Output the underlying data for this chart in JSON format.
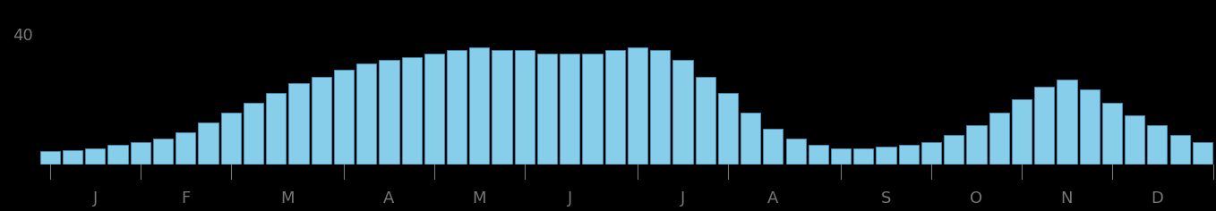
{
  "values": [
    4,
    4.5,
    5,
    6,
    7,
    8,
    10,
    13,
    16,
    19,
    22,
    25,
    27,
    29,
    31,
    32,
    33,
    34,
    35,
    36,
    35,
    35,
    34,
    34,
    34,
    35,
    36,
    35,
    32,
    27,
    22,
    16,
    11,
    8,
    6,
    5,
    5,
    5.5,
    6,
    7,
    9,
    12,
    16,
    20,
    24,
    26,
    23,
    19,
    15,
    12,
    9,
    7
  ],
  "bar_color": "#87CEEB",
  "bar_edge_color": "#4a8fba",
  "background_color": "#000000",
  "strip_color": "#5a9fc0",
  "strip_edge_color": "#3a7fa0",
  "ytick_label": "40",
  "ytick_value": 40,
  "ylim": [
    0,
    44
  ],
  "n_bars": 52,
  "month_labels": [
    "J",
    "F",
    "M",
    "A",
    "M",
    "J",
    "J",
    "A",
    "S",
    "O",
    "N",
    "D"
  ],
  "tick_color": "#777777",
  "label_color": "#777777",
  "label_fontsize": 13,
  "ytick_fontsize": 13
}
